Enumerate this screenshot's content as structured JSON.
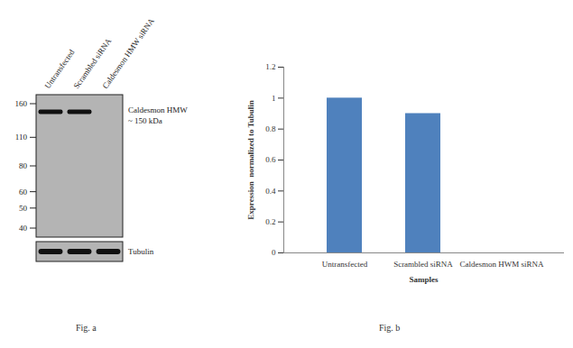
{
  "chart_data": {
    "type": "bar",
    "categories": [
      "Untransfected",
      "Scrambled siRNA",
      "Caldesmon HWM siRNA"
    ],
    "values": [
      1,
      0.9,
      0
    ],
    "color": "#4f81bd",
    "ylim": [
      0,
      1.2
    ],
    "yticks": [
      0,
      0.2,
      0.4,
      0.6,
      0.8,
      1,
      1.2
    ],
    "y_label": "Expression  normalized to Tubulin",
    "x_label": "Samples",
    "caption": "Fig. b"
  },
  "blot": {
    "lanes": [
      "Untransfected",
      "Scrambled siRNA",
      "Caldesmon HMW siRNA"
    ],
    "markers": [
      160,
      110,
      80,
      60,
      50,
      40
    ],
    "target": "Caldesmon HMW",
    "target_size": "~ 150 kDa",
    "target_bands": [
      true,
      true,
      false
    ],
    "loading_control": "Tubulin",
    "loading_bands": [
      true,
      true,
      true
    ],
    "caption": "Fig. a"
  }
}
